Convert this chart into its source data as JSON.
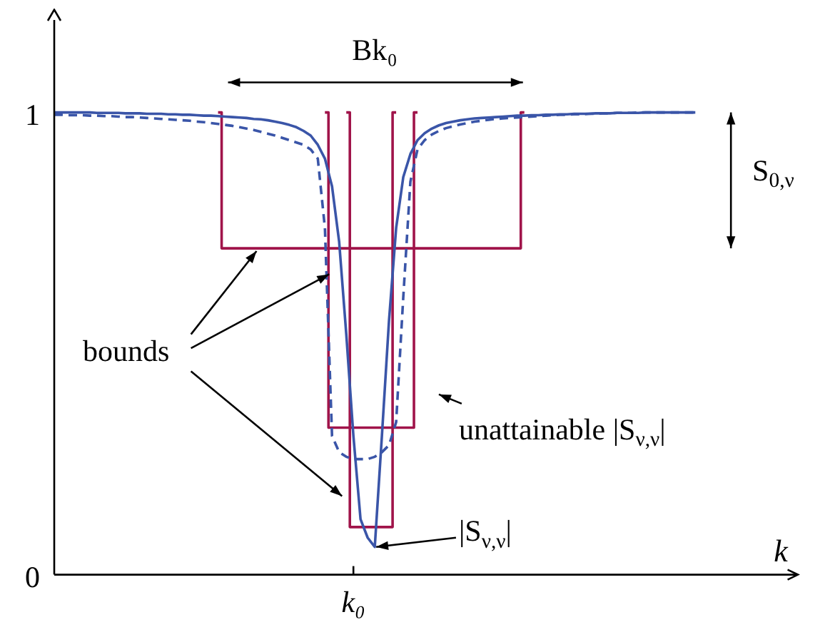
{
  "chart_data": {
    "type": "line",
    "xlabel": "k",
    "categories": [
      null,
      null,
      null,
      null,
      null,
      null,
      null,
      null,
      null,
      null,
      null,
      null,
      null,
      null,
      null,
      null,
      null,
      null,
      null,
      null,
      null,
      null,
      null,
      null,
      null,
      null,
      null,
      null,
      null,
      null,
      null,
      null,
      null,
      null,
      null,
      null,
      null,
      null,
      null,
      null,
      null,
      null,
      "k₀",
      null,
      null,
      null,
      null,
      null,
      null,
      null,
      null,
      null,
      null,
      null,
      null,
      null,
      null,
      null,
      null,
      null,
      null,
      null,
      null,
      null,
      null,
      null,
      null,
      null,
      null,
      null,
      null,
      null,
      null,
      null,
      null,
      null,
      null,
      null,
      null,
      null,
      null,
      null,
      null,
      null,
      null,
      null,
      null,
      null,
      null,
      null,
      null,
      null,
      null,
      null,
      null,
      null,
      null,
      null,
      null,
      null,
      null,
      null,
      null,
      null,
      null
    ],
    "ylim": [
      0,
      1.2
    ],
    "yticks": [
      0,
      1
    ],
    "grid": false,
    "legend": false,
    "marker": "none",
    "series": [
      {
        "color": "#3a55a8",
        "line_style": "solid",
        "values": [
          1.0,
          1.0,
          1.0,
          1.0,
          1.0,
          1.0,
          0.999,
          0.999,
          0.999,
          0.999,
          0.998,
          0.998,
          0.998,
          0.997,
          0.997,
          0.997,
          0.996,
          0.996,
          0.995,
          0.995,
          0.994,
          0.993,
          0.993,
          0.992,
          0.991,
          0.99,
          0.989,
          0.988,
          0.986,
          0.985,
          0.983,
          0.98,
          0.977,
          0.973,
          0.968,
          0.96,
          0.95,
          0.93,
          0.9,
          0.84,
          0.72,
          0.52,
          0.3,
          0.12,
          0.08,
          0.06,
          0.3,
          0.55,
          0.75,
          0.86,
          0.91,
          0.94,
          0.955,
          0.965,
          0.972,
          0.977,
          0.98,
          0.983,
          0.985,
          0.987,
          0.988,
          0.989,
          0.99,
          0.991,
          0.992,
          0.993,
          0.993,
          0.994,
          0.994,
          0.995,
          0.995,
          0.996,
          0.996,
          0.997,
          0.997,
          0.997,
          0.998,
          0.998,
          0.998,
          0.999,
          0.999,
          0.999,
          0.999,
          1.0,
          1.0,
          1.0,
          1.0,
          1.0,
          1.0,
          1.0,
          1.0,
          null,
          null,
          null,
          null,
          null,
          null,
          null,
          null,
          null,
          null,
          null,
          null,
          null,
          null
        ]
      },
      {
        "color": "#3a55a8",
        "line_style": "dashed",
        "values": [
          0.995,
          0.995,
          0.994,
          0.994,
          0.994,
          0.993,
          0.993,
          0.992,
          0.992,
          0.991,
          0.99,
          0.99,
          0.989,
          0.988,
          0.987,
          0.986,
          0.985,
          0.984,
          0.983,
          0.982,
          0.98,
          0.979,
          0.977,
          0.975,
          0.973,
          0.971,
          0.968,
          0.965,
          0.962,
          0.958,
          0.954,
          0.95,
          0.945,
          0.94,
          0.935,
          0.93,
          0.92,
          0.9,
          0.75,
          0.3,
          0.265,
          0.255,
          0.25,
          0.25,
          0.25,
          0.255,
          0.265,
          0.28,
          0.33,
          0.6,
          0.85,
          0.92,
          0.94,
          0.952,
          0.96,
          0.966,
          0.97,
          0.974,
          0.977,
          0.98,
          0.982,
          0.984,
          0.986,
          0.987,
          0.988,
          0.989,
          0.99,
          0.991,
          0.992,
          0.993,
          0.994,
          0.995,
          0.995,
          0.996,
          0.996,
          0.997,
          0.997,
          0.998,
          0.998,
          0.999,
          0.999,
          0.999,
          1.0,
          1.0,
          1.0,
          1.0,
          1.0,
          1.0,
          1.0,
          1.0,
          1.0,
          null,
          null,
          null,
          null,
          null,
          null,
          null,
          null,
          null,
          null,
          null,
          null,
          null,
          null
        ]
      },
      {
        "type": "step",
        "color": "#a0144a",
        "line_style": "solid",
        "values": [
          null,
          null,
          null,
          null,
          null,
          null,
          null,
          null,
          null,
          null,
          null,
          null,
          null,
          null,
          null,
          null,
          null,
          null,
          null,
          null,
          null,
          null,
          null,
          1.0,
          0.706,
          0.706,
          0.706,
          0.706,
          0.706,
          0.706,
          0.706,
          0.706,
          0.706,
          0.706,
          0.706,
          0.706,
          0.706,
          0.706,
          0.706,
          0.706,
          0.706,
          0.706,
          0.706,
          0.706,
          0.706,
          0.706,
          0.706,
          0.706,
          0.706,
          0.706,
          0.706,
          0.706,
          0.706,
          0.706,
          0.706,
          0.706,
          0.706,
          0.706,
          0.706,
          0.706,
          0.706,
          0.706,
          0.706,
          0.706,
          0.706,
          0.706,
          1.0,
          null,
          null,
          null,
          null,
          null,
          null,
          null,
          null,
          null,
          null,
          null,
          null,
          null,
          null,
          null,
          null,
          null,
          null,
          null,
          null,
          null,
          null,
          null,
          null,
          null,
          null,
          null,
          null,
          null,
          null,
          null,
          null,
          null,
          null,
          null,
          null,
          null,
          null
        ]
      },
      {
        "type": "step",
        "color": "#a0144a",
        "line_style": "solid",
        "values": [
          null,
          null,
          null,
          null,
          null,
          null,
          null,
          null,
          null,
          null,
          null,
          null,
          null,
          null,
          null,
          null,
          null,
          null,
          null,
          null,
          null,
          null,
          null,
          null,
          null,
          null,
          null,
          null,
          null,
          null,
          null,
          null,
          null,
          null,
          null,
          null,
          null,
          null,
          1.0,
          0.318,
          0.318,
          0.318,
          0.318,
          0.318,
          0.318,
          0.318,
          0.318,
          0.318,
          0.318,
          0.318,
          0.318,
          1.0,
          null,
          null,
          null,
          null,
          null,
          null,
          null,
          null,
          null,
          null,
          null,
          null,
          null,
          null,
          null,
          null,
          null,
          null,
          null,
          null,
          null,
          null,
          null,
          null,
          null,
          null,
          null,
          null,
          null,
          null,
          null,
          null,
          null,
          null,
          null,
          null,
          null,
          null,
          null,
          null,
          null,
          null,
          null,
          null,
          null,
          null,
          null,
          null,
          null,
          null,
          null,
          null,
          null
        ]
      },
      {
        "type": "step",
        "color": "#a0144a",
        "line_style": "solid",
        "values": [
          null,
          null,
          null,
          null,
          null,
          null,
          null,
          null,
          null,
          null,
          null,
          null,
          null,
          null,
          null,
          null,
          null,
          null,
          null,
          null,
          null,
          null,
          null,
          null,
          null,
          null,
          null,
          null,
          null,
          null,
          null,
          null,
          null,
          null,
          null,
          null,
          null,
          null,
          null,
          null,
          null,
          1.0,
          0.103,
          0.103,
          0.103,
          0.103,
          0.103,
          0.103,
          1.0,
          null,
          null,
          null,
          null,
          null,
          null,
          null,
          null,
          null,
          null,
          null,
          null,
          null,
          null,
          null,
          null,
          null,
          null,
          null,
          null,
          null,
          null,
          null,
          null,
          null,
          null,
          null,
          null,
          null,
          null,
          null,
          null,
          null,
          null,
          null,
          null,
          null,
          null,
          null,
          null,
          null,
          null,
          null,
          null,
          null,
          null,
          null,
          null,
          null,
          null,
          null,
          null,
          null,
          null,
          null,
          null
        ]
      }
    ],
    "annotations": [
      "Bk₀",
      "S$_{0,ν}$",
      "bounds",
      "unattainable |S$_{ν,ν}$|",
      "|S$_{ν,ν}$|"
    ]
  }
}
